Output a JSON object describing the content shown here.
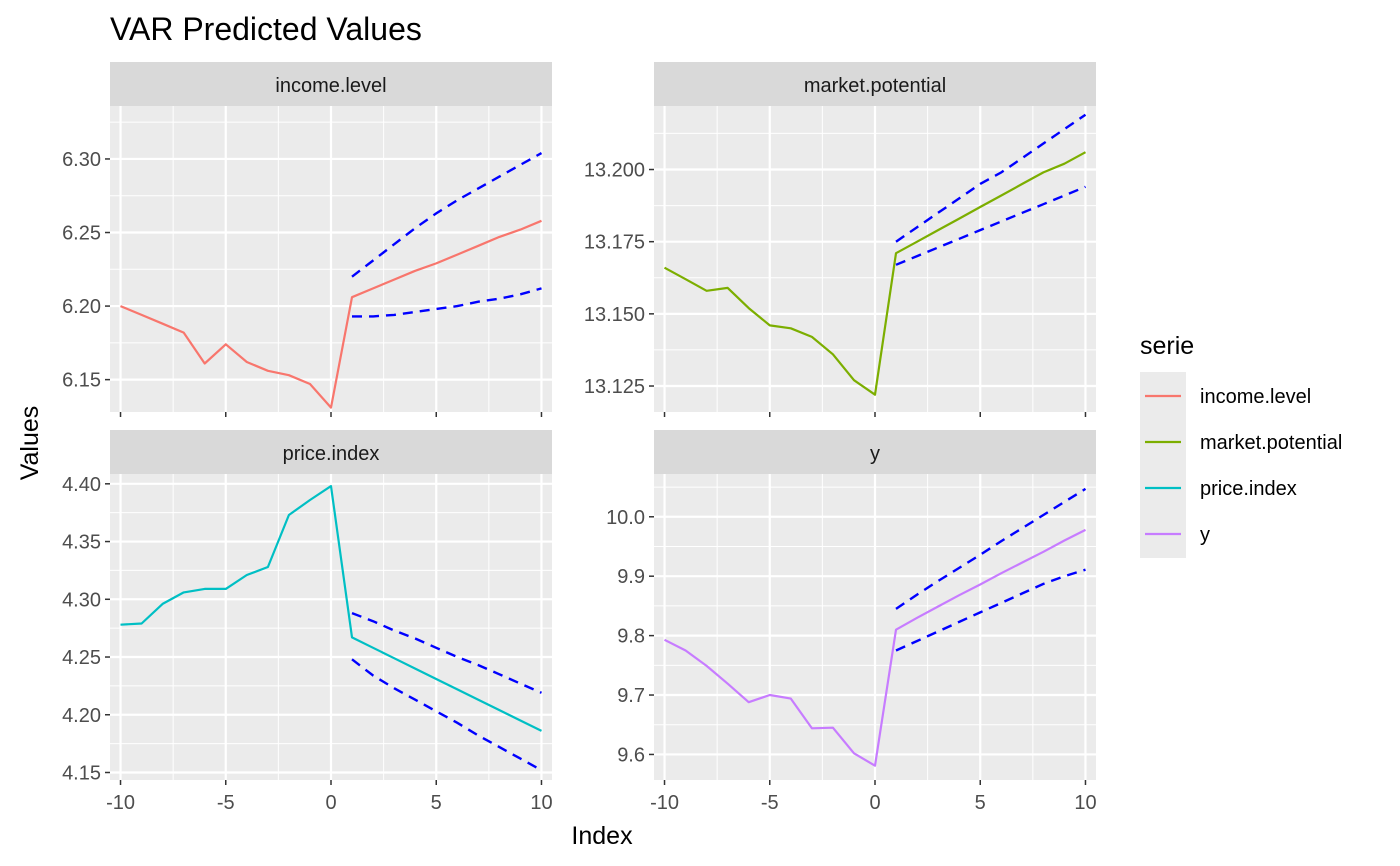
{
  "chart_data": {
    "type": "line",
    "title": "VAR Predicted Values",
    "xlabel": "Index",
    "ylabel": "Values",
    "legend": {
      "title": "serie",
      "placement": "right",
      "entries": [
        {
          "label": "income.level",
          "color": "#F8766D"
        },
        {
          "label": "market.potential",
          "color": "#7CAE00"
        },
        {
          "label": "price.index",
          "color": "#00BFC4"
        },
        {
          "label": "y",
          "color": "#C77CFF"
        }
      ]
    },
    "grid": true,
    "interval_color": "#0000FF",
    "x_ticks": [
      "-10",
      "-5",
      "0",
      "5",
      "10"
    ],
    "xlim": [
      -10.5,
      10.5
    ],
    "panels": [
      {
        "strip": "income.level",
        "color": "#F8766D",
        "ylim": [
          6.128,
          6.336
        ],
        "y_ticks": [
          6.15,
          6.2,
          6.25,
          6.3
        ],
        "y_tick_labels": [
          "6.15",
          "6.20",
          "6.25",
          "6.30"
        ],
        "x": [
          -10,
          -9,
          -8,
          -7,
          -6,
          -5,
          -4,
          -3,
          -2,
          -1,
          0,
          1,
          2,
          3,
          4,
          5,
          6,
          7,
          8,
          9,
          10
        ],
        "values": [
          6.2,
          6.194,
          6.188,
          6.182,
          6.161,
          6.174,
          6.162,
          6.156,
          6.153,
          6.147,
          6.131,
          6.206,
          6.212,
          6.218,
          6.224,
          6.229,
          6.235,
          6.241,
          6.247,
          6.252,
          6.258
        ],
        "upper": {
          "x": [
            1,
            2,
            3,
            4,
            5,
            6,
            7,
            8,
            9,
            10
          ],
          "values": [
            6.22,
            6.231,
            6.242,
            6.253,
            6.263,
            6.272,
            6.28,
            6.288,
            6.296,
            6.304
          ]
        },
        "lower": {
          "x": [
            1,
            2,
            3,
            4,
            5,
            6,
            7,
            8,
            9,
            10
          ],
          "values": [
            6.193,
            6.193,
            6.194,
            6.196,
            6.198,
            6.2,
            6.203,
            6.205,
            6.208,
            6.212
          ]
        }
      },
      {
        "strip": "market.potential",
        "color": "#7CAE00",
        "ylim": [
          13.116,
          13.222
        ],
        "y_ticks": [
          13.125,
          13.15,
          13.175,
          13.2
        ],
        "y_tick_labels": [
          "13.125",
          "13.150",
          "13.175",
          "13.200"
        ],
        "x": [
          -10,
          -9,
          -8,
          -7,
          -6,
          -5,
          -4,
          -3,
          -2,
          -1,
          0,
          1,
          2,
          3,
          4,
          5,
          6,
          7,
          8,
          9,
          10
        ],
        "values": [
          13.166,
          13.162,
          13.158,
          13.159,
          13.152,
          13.146,
          13.145,
          13.142,
          13.136,
          13.127,
          13.122,
          13.171,
          13.175,
          13.179,
          13.183,
          13.187,
          13.191,
          13.195,
          13.199,
          13.202,
          13.206
        ],
        "upper": {
          "x": [
            1,
            2,
            3,
            4,
            5,
            6,
            7,
            8,
            9,
            10
          ],
          "values": [
            13.175,
            13.18,
            13.185,
            13.19,
            13.195,
            13.199,
            13.204,
            13.209,
            13.214,
            13.219
          ]
        },
        "lower": {
          "x": [
            1,
            2,
            3,
            4,
            5,
            6,
            7,
            8,
            9,
            10
          ],
          "values": [
            13.167,
            13.17,
            13.173,
            13.176,
            13.179,
            13.182,
            13.185,
            13.188,
            13.191,
            13.194
          ]
        }
      },
      {
        "strip": "price.index",
        "color": "#00BFC4",
        "ylim": [
          4.1435,
          4.4085
        ],
        "y_ticks": [
          4.15,
          4.2,
          4.25,
          4.3,
          4.35,
          4.4
        ],
        "y_tick_labels": [
          "4.15",
          "4.20",
          "4.25",
          "4.30",
          "4.35",
          "4.40"
        ],
        "x": [
          -10,
          -9,
          -8,
          -7,
          -6,
          -5,
          -4,
          -3,
          -2,
          -1,
          0,
          1,
          2,
          3,
          4,
          5,
          6,
          7,
          8,
          9,
          10
        ],
        "values": [
          4.278,
          4.279,
          4.296,
          4.306,
          4.309,
          4.309,
          4.321,
          4.328,
          4.373,
          4.386,
          4.398,
          4.267,
          4.258,
          4.249,
          4.24,
          4.231,
          4.222,
          4.213,
          4.204,
          4.195,
          4.186
        ],
        "upper": {
          "x": [
            1,
            2,
            3,
            4,
            5,
            6,
            7,
            8,
            9,
            10
          ],
          "values": [
            4.288,
            4.281,
            4.273,
            4.266,
            4.258,
            4.25,
            4.243,
            4.235,
            4.227,
            4.219
          ]
        },
        "lower": {
          "x": [
            1,
            2,
            3,
            4,
            5,
            6,
            7,
            8,
            9,
            10
          ],
          "values": [
            4.248,
            4.234,
            4.223,
            4.213,
            4.203,
            4.193,
            4.182,
            4.172,
            4.162,
            4.152
          ]
        }
      },
      {
        "strip": "y",
        "color": "#C77CFF",
        "ylim": [
          9.557,
          10.072
        ],
        "y_ticks": [
          9.6,
          9.7,
          9.8,
          9.9,
          10.0
        ],
        "y_tick_labels": [
          "9.6",
          "9.7",
          "9.8",
          "9.9",
          "10.0"
        ],
        "x": [
          -10,
          -9,
          -8,
          -7,
          -6,
          -5,
          -4,
          -3,
          -2,
          -1,
          0,
          1,
          2,
          3,
          4,
          5,
          6,
          7,
          8,
          9,
          10
        ],
        "values": [
          9.793,
          9.775,
          9.749,
          9.719,
          9.688,
          9.7,
          9.694,
          9.644,
          9.645,
          9.602,
          9.581,
          9.81,
          9.83,
          9.849,
          9.868,
          9.886,
          9.905,
          9.923,
          9.941,
          9.96,
          9.978
        ],
        "upper": {
          "x": [
            1,
            2,
            3,
            4,
            5,
            6,
            7,
            8,
            9,
            10
          ],
          "values": [
            9.845,
            9.869,
            9.892,
            9.914,
            9.936,
            9.959,
            9.981,
            10.003,
            10.025,
            10.047
          ]
        },
        "lower": {
          "x": [
            1,
            2,
            3,
            4,
            5,
            6,
            7,
            8,
            9,
            10
          ],
          "values": [
            9.775,
            9.791,
            9.807,
            9.823,
            9.839,
            9.855,
            9.871,
            9.887,
            9.9,
            9.911
          ]
        }
      }
    ]
  }
}
